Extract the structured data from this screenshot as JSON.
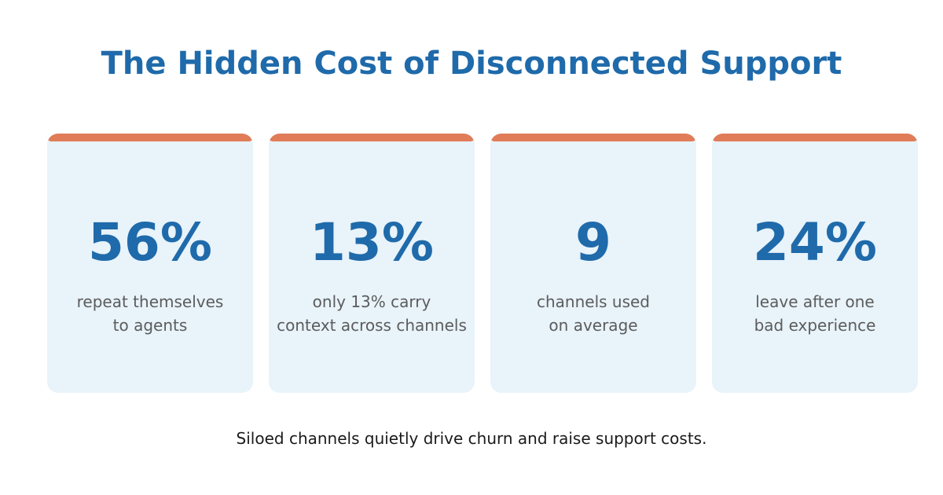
{
  "title": "The Hidden Cost of Disconnected Support",
  "colors": {
    "accent_bar": "#e07c58",
    "stat_value": "#1f6aaa",
    "card_background": "#e8f3fa",
    "caption": "#5c5c5c"
  },
  "stats": [
    {
      "value": "56%",
      "caption_line1": "repeat themselves",
      "caption_line2": "to agents"
    },
    {
      "value": "13%",
      "caption_line1": "only 13% carry",
      "caption_line2": "context across channels"
    },
    {
      "value": "9",
      "caption_line1": "channels used",
      "caption_line2": "on average"
    },
    {
      "value": "24%",
      "caption_line1": "leave after one",
      "caption_line2": "bad experience"
    }
  ],
  "footer": "Siloed channels quietly drive churn and raise support costs."
}
